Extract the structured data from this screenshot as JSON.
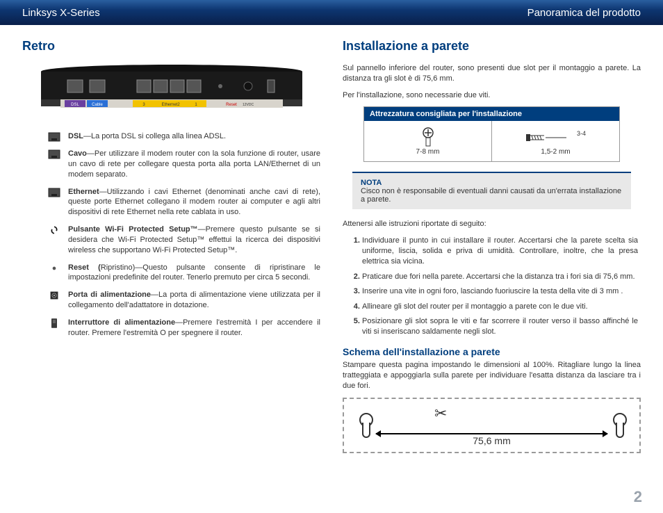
{
  "header": {
    "left": "Linksys X-Series",
    "right": "Panoramica del prodotto"
  },
  "left": {
    "title": "Retro",
    "ports": [
      {
        "icon": "eth",
        "bold": "DSL",
        "text": "—La porta DSL si collega alla linea ADSL."
      },
      {
        "icon": "eth",
        "bold": "Cavo",
        "text": "—Per utilizzare il modem router con la sola funzione di router, usare un cavo di rete per collegare questa porta alla porta LAN/Ethernet di un modem separato."
      },
      {
        "icon": "eth",
        "bold": "Ethernet",
        "text": "—Utilizzando i cavi Ethernet (denominati anche cavi di rete), queste porte Ethernet collegano il modem router ai computer e agli altri dispositivi di rete Ethernet nella rete cablata in uso."
      },
      {
        "icon": "wps",
        "bold": "Pulsante Wi-Fi Protected Setup™",
        "text": "—Premere questo pulsante se si desidera che Wi-Fi Protected Setup™ effettui la ricerca dei dispositivi wireless che supportano Wi-Fi Protected Setup™."
      },
      {
        "icon": "reset",
        "bold": "Reset (",
        "text": "Ripristino)—Questo pulsante consente di ripristinare le impostazioni predefinite del router. Tenerlo premuto per circa 5 secondi."
      },
      {
        "icon": "power",
        "bold": "Porta di alimentazione",
        "text": "—La porta di alimentazione viene utilizzata per il collegamento dell'adattatore in dotazione."
      },
      {
        "icon": "switch",
        "bold": "Interruttore di alimentazione",
        "text": "—Premere l'estremità I per accendere il router. Premere l'estremità O per spegnere il router."
      }
    ]
  },
  "right": {
    "title": "Installazione a parete",
    "intro1": "Sul pannello inferiore del router, sono presenti due slot per il montaggio a parete. La distanza tra gli slot è di 75,6 mm.",
    "intro2": "Per l'installazione, sono necessarie due viti.",
    "equip_title": "Attrezzatura consigliata per l'installazione",
    "equip": {
      "screw_len": "7-8 mm",
      "shaft": "1,5-2 mm",
      "head": "3-4 mm"
    },
    "note_label": "NOTA",
    "note": "Cisco non è responsabile di eventuali danni causati da un'errata installazione a parete.",
    "follow": "Attenersi alle istruzioni riportate di seguito:",
    "steps": [
      "Individuare il punto in cui installare il router. Accertarsi che la parete scelta sia uniforme, liscia, solida e priva di umidità. Controllare, inoltre, che la presa elettrica sia vicina.",
      "Praticare due fori nella parete. Accertarsi che la distanza tra i fori sia di 75,6 mm.",
      "Inserire una vite in ogni foro, lasciando fuoriuscire la testa della vite di 3 mm .",
      "Allineare gli slot del router per il montaggio a parete con le due viti.",
      "Posizionare gli slot sopra le viti e far scorrere il router verso il basso affinché le viti si inseriscano saldamente negli slot."
    ],
    "schema_title": "Schema dell'installazione a parete",
    "schema_text": "Stampare questa pagina impostando le dimensioni al 100%.  Ritagliare lungo la linea tratteggiata e appoggiarla sulla parete per individuare l'esatta distanza da lasciare tra i due fori.",
    "distance": "75,6 mm"
  },
  "page_number": "2",
  "router_labels": {
    "dsl": "DSL",
    "cable": "Cable",
    "eth3": "3",
    "eth_label": "Ethernet",
    "eth2": "2",
    "eth1": "1",
    "reset": "Reset",
    "power": "12VDC"
  }
}
